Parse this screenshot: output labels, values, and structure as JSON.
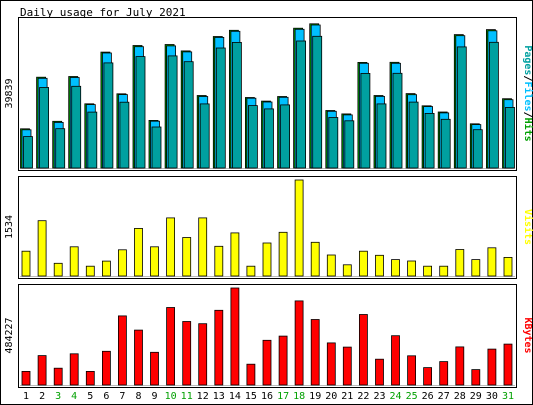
{
  "chart_data": {
    "type": "bar",
    "title": "Daily usage for July 2021",
    "days": [
      "1",
      "2",
      "3",
      "4",
      "5",
      "6",
      "7",
      "8",
      "9",
      "10",
      "11",
      "12",
      "13",
      "14",
      "15",
      "16",
      "17",
      "18",
      "19",
      "20",
      "21",
      "22",
      "23",
      "24",
      "25",
      "26",
      "27",
      "28",
      "29",
      "30",
      "31"
    ],
    "weekend_days": [
      "3",
      "4",
      "10",
      "11",
      "17",
      "18",
      "24",
      "25",
      "31"
    ],
    "panels": [
      {
        "id": "hits",
        "ymax_label": "39839",
        "ymax": 39839,
        "right_label_parts": [
          {
            "text": "Pages",
            "color": "#00a0a0"
          },
          {
            "text": "/",
            "color": "#000000"
          },
          {
            "text": "Files",
            "color": "#00c0ff"
          },
          {
            "text": "/",
            "color": "#000000"
          },
          {
            "text": "Hits",
            "color": "#00a000"
          }
        ],
        "series": [
          {
            "name": "Hits",
            "color": "#00a000",
            "values": [
              10630,
              24620,
              12660,
              24810,
              17410,
              31400,
              20100,
              33190,
              12900,
              33460,
              31730,
              19650,
              35630,
              37330,
              19110,
              18140,
              19370,
              37880,
              39080,
              15590,
              14670,
              28620,
              19640,
              28650,
              20150,
              16860,
              15170,
              36140,
              11970,
              37500,
              18770
            ]
          },
          {
            "name": "Files",
            "color": "#00c0ff",
            "values": [
              10350,
              24320,
              12370,
              24530,
              17170,
              31170,
              19890,
              32870,
              12690,
              33100,
              31460,
              19370,
              35400,
              37040,
              18910,
              17890,
              19160,
              37590,
              38760,
              15360,
              14390,
              28380,
              19410,
              28370,
              19870,
              16640,
              14920,
              35860,
              11750,
              37190,
              18510
            ]
          },
          {
            "name": "Pages",
            "color": "#00a0a0",
            "values": [
              8510,
              21820,
              10640,
              22130,
              15140,
              28490,
              17840,
              30190,
              11120,
              30380,
              28800,
              17370,
              32510,
              34030,
              16900,
              16010,
              17090,
              34430,
              35700,
              13690,
              12790,
              25640,
              17380,
              25670,
              17850,
              14790,
              13200,
              32810,
              10370,
              34060,
              16430
            ]
          }
        ]
      },
      {
        "id": "visits",
        "ymax_label": "1534",
        "ymax": 1534,
        "right_label_parts": [
          {
            "text": "Visits",
            "color": "#ffff00"
          }
        ],
        "series": [
          {
            "name": "Visits",
            "color": "#ffff00",
            "values": [
              397,
              884,
              203,
              467,
              157,
              238,
              419,
              761,
              467,
              929,
              615,
              929,
              474,
              689,
              157,
              527,
              698,
              1534,
              539,
              336,
              179,
              397,
              331,
              262,
              240,
              157,
              157,
              424,
              262,
              451,
              298
            ]
          }
        ]
      },
      {
        "id": "kbytes",
        "ymax_label": "484227",
        "ymax": 484227,
        "right_label_parts": [
          {
            "text": "KBytes",
            "color": "#ff0000"
          }
        ],
        "series": [
          {
            "name": "KBytes",
            "color": "#ff0000",
            "values": [
              68000,
              147000,
              84000,
              156000,
              68000,
              168000,
              345000,
              274000,
              163000,
              387000,
              317000,
              306000,
              373000,
              484227,
              104000,
              223000,
              244000,
              420000,
              327000,
              210000,
              189000,
              352000,
              129000,
              246000,
              146000,
              87000,
              117000,
              190000,
              77000,
              179000,
              204000
            ]
          }
        ]
      }
    ]
  }
}
